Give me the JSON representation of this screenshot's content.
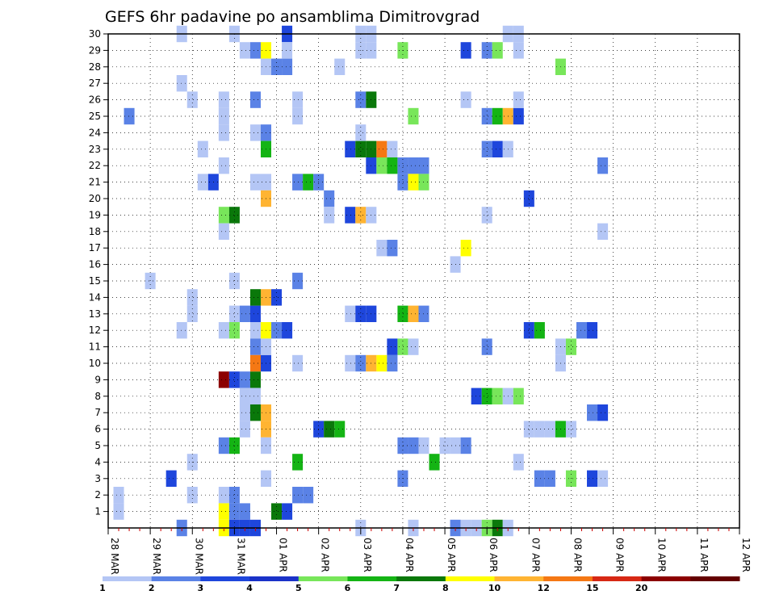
{
  "chart_data": {
    "type": "heatmap",
    "title": "GEFS 6hr padavine po ansamblima Dimitrovgrad",
    "xlabel": "",
    "ylabel": "",
    "x_labels": [
      "28 MAR",
      "29 MAR",
      "30 MAR",
      "31 MAR",
      "01 APR",
      "02 APR",
      "03 APR",
      "04 APR",
      "05 APR",
      "06 APR",
      "07 APR",
      "08 APR",
      "09 APR",
      "10 APR",
      "11 APR",
      "12 APR"
    ],
    "time_steps_per_day": 4,
    "y_members": [
      1,
      2,
      3,
      4,
      5,
      6,
      7,
      8,
      9,
      10,
      11,
      12,
      13,
      14,
      15,
      16,
      17,
      18,
      19,
      20,
      21,
      22,
      23,
      24,
      25,
      26,
      27,
      28,
      29,
      30
    ],
    "grid": true,
    "legend": {
      "placement": "bottom",
      "levels": [
        "1",
        "2",
        "3",
        "4",
        "5",
        "6",
        "7",
        "8",
        "10",
        "12",
        "15",
        "20"
      ],
      "colors": [
        "#b4c6f5",
        "#5a82e6",
        "#1e46dc",
        "#1a32c8",
        "#78e65a",
        "#14b414",
        "#0a780a",
        "#ffff00",
        "#ffb432",
        "#f57814",
        "#d72814",
        "#8c0000",
        "#640000"
      ]
    },
    "cells": [
      {
        "t": 1,
        "m": 1,
        "c": 0
      },
      {
        "t": 1,
        "m": 2,
        "c": 0
      },
      {
        "t": 2,
        "m": 25,
        "c": 1
      },
      {
        "t": 4,
        "m": 15,
        "c": 0
      },
      {
        "t": 7,
        "m": 30,
        "c": 0
      },
      {
        "t": 7,
        "m": 27,
        "c": 0
      },
      {
        "t": 7,
        "m": 12,
        "c": 0
      },
      {
        "t": 6,
        "m": 3,
        "c": 2
      },
      {
        "t": 7,
        "m": 0,
        "c": 1
      },
      {
        "t": 8,
        "m": 26,
        "c": 0
      },
      {
        "t": 8,
        "m": 14,
        "c": 0
      },
      {
        "t": 8,
        "m": 13,
        "c": 0
      },
      {
        "t": 8,
        "m": 4,
        "c": 0
      },
      {
        "t": 8,
        "m": 2,
        "c": 0
      },
      {
        "t": 9,
        "m": 23,
        "c": 0
      },
      {
        "t": 9,
        "m": 21,
        "c": 0
      },
      {
        "t": 10,
        "m": 21,
        "c": 2
      },
      {
        "t": 11,
        "m": 26,
        "c": 0
      },
      {
        "t": 11,
        "m": 25,
        "c": 0
      },
      {
        "t": 11,
        "m": 24,
        "c": 0
      },
      {
        "t": 11,
        "m": 22,
        "c": 0
      },
      {
        "t": 11,
        "m": 19,
        "c": 4
      },
      {
        "t": 12,
        "m": 19,
        "c": 6
      },
      {
        "t": 11,
        "m": 18,
        "c": 0
      },
      {
        "t": 11,
        "m": 12,
        "c": 0
      },
      {
        "t": 12,
        "m": 12,
        "c": 4
      },
      {
        "t": 11,
        "m": 9,
        "c": 11
      },
      {
        "t": 12,
        "m": 9,
        "c": 2
      },
      {
        "t": 13,
        "m": 9,
        "c": 1
      },
      {
        "t": 14,
        "m": 9,
        "c": 6
      },
      {
        "t": 11,
        "m": 5,
        "c": 1
      },
      {
        "t": 12,
        "m": 5,
        "c": 5
      },
      {
        "t": 11,
        "m": 2,
        "c": 0
      },
      {
        "t": 12,
        "m": 2,
        "c": 1
      },
      {
        "t": 11,
        "m": 1,
        "c": 7
      },
      {
        "t": 12,
        "m": 1,
        "c": 1
      },
      {
        "t": 13,
        "m": 1,
        "c": 1
      },
      {
        "t": 11,
        "m": 0,
        "c": 7
      },
      {
        "t": 12,
        "m": 0,
        "c": 2
      },
      {
        "t": 13,
        "m": 0,
        "c": 2
      },
      {
        "t": 14,
        "m": 0,
        "c": 2
      },
      {
        "t": 12,
        "m": 30,
        "c": 0
      },
      {
        "t": 12,
        "m": 15,
        "c": 0
      },
      {
        "t": 12,
        "m": 13,
        "c": 0
      },
      {
        "t": 13,
        "m": 13,
        "c": 1
      },
      {
        "t": 14,
        "m": 13,
        "c": 2
      },
      {
        "t": 13,
        "m": 29,
        "c": 0
      },
      {
        "t": 14,
        "m": 29,
        "c": 1
      },
      {
        "t": 15,
        "m": 29,
        "c": 7
      },
      {
        "t": 13,
        "m": 8,
        "c": 0
      },
      {
        "t": 14,
        "m": 8,
        "c": 0
      },
      {
        "t": 13,
        "m": 7,
        "c": 0
      },
      {
        "t": 14,
        "m": 7,
        "c": 6
      },
      {
        "t": 15,
        "m": 7,
        "c": 8
      },
      {
        "t": 13,
        "m": 6,
        "c": 0
      },
      {
        "t": 15,
        "m": 6,
        "c": 8
      },
      {
        "t": 14,
        "m": 26,
        "c": 1
      },
      {
        "t": 14,
        "m": 24,
        "c": 0
      },
      {
        "t": 15,
        "m": 24,
        "c": 1
      },
      {
        "t": 14,
        "m": 21,
        "c": 0
      },
      {
        "t": 15,
        "m": 21,
        "c": 0
      },
      {
        "t": 14,
        "m": 14,
        "c": 6
      },
      {
        "t": 15,
        "m": 14,
        "c": 8
      },
      {
        "t": 16,
        "m": 14,
        "c": 2
      },
      {
        "t": 14,
        "m": 12,
        "c": 0
      },
      {
        "t": 15,
        "m": 12,
        "c": 7
      },
      {
        "t": 16,
        "m": 12,
        "c": 1
      },
      {
        "t": 17,
        "m": 12,
        "c": 2
      },
      {
        "t": 14,
        "m": 11,
        "c": 1
      },
      {
        "t": 14,
        "m": 10,
        "c": 9
      },
      {
        "t": 15,
        "m": 10,
        "c": 2
      },
      {
        "t": 15,
        "m": 28,
        "c": 0
      },
      {
        "t": 15,
        "m": 23,
        "c": 5
      },
      {
        "t": 15,
        "m": 20,
        "c": 8
      },
      {
        "t": 15,
        "m": 11,
        "c": 0
      },
      {
        "t": 15,
        "m": 5,
        "c": 0
      },
      {
        "t": 15,
        "m": 3,
        "c": 0
      },
      {
        "t": 16,
        "m": 1,
        "c": 6
      },
      {
        "t": 17,
        "m": 1,
        "c": 2
      },
      {
        "t": 16,
        "m": 28,
        "c": 1
      },
      {
        "t": 17,
        "m": 28,
        "c": 1
      },
      {
        "t": 17,
        "m": 30,
        "c": 2
      },
      {
        "t": 17,
        "m": 29,
        "c": 0
      },
      {
        "t": 18,
        "m": 26,
        "c": 0
      },
      {
        "t": 18,
        "m": 25,
        "c": 0
      },
      {
        "t": 18,
        "m": 21,
        "c": 0
      },
      {
        "t": 18,
        "m": 21,
        "c": 1
      },
      {
        "t": 19,
        "m": 21,
        "c": 5
      },
      {
        "t": 20,
        "m": 21,
        "c": 1
      },
      {
        "t": 18,
        "m": 15,
        "c": 1
      },
      {
        "t": 18,
        "m": 10,
        "c": 0
      },
      {
        "t": 18,
        "m": 4,
        "c": 5
      },
      {
        "t": 18,
        "m": 2,
        "c": 1
      },
      {
        "t": 19,
        "m": 2,
        "c": 1
      },
      {
        "t": 20,
        "m": 6,
        "c": 2
      },
      {
        "t": 21,
        "m": 6,
        "c": 6
      },
      {
        "t": 22,
        "m": 6,
        "c": 5
      },
      {
        "t": 21,
        "m": 20,
        "c": 1
      },
      {
        "t": 21,
        "m": 19,
        "c": 0
      },
      {
        "t": 22,
        "m": 28,
        "c": 0
      },
      {
        "t": 23,
        "m": 23,
        "c": 2
      },
      {
        "t": 24,
        "m": 23,
        "c": 6
      },
      {
        "t": 25,
        "m": 23,
        "c": 6
      },
      {
        "t": 26,
        "m": 23,
        "c": 9
      },
      {
        "t": 27,
        "m": 23,
        "c": 0
      },
      {
        "t": 23,
        "m": 19,
        "c": 2
      },
      {
        "t": 24,
        "m": 19,
        "c": 8
      },
      {
        "t": 25,
        "m": 19,
        "c": 0
      },
      {
        "t": 23,
        "m": 13,
        "c": 0
      },
      {
        "t": 24,
        "m": 13,
        "c": 2
      },
      {
        "t": 25,
        "m": 13,
        "c": 2
      },
      {
        "t": 23,
        "m": 10,
        "c": 0
      },
      {
        "t": 24,
        "m": 10,
        "c": 1
      },
      {
        "t": 25,
        "m": 10,
        "c": 8
      },
      {
        "t": 26,
        "m": 10,
        "c": 7
      },
      {
        "t": 27,
        "m": 10,
        "c": 1
      },
      {
        "t": 24,
        "m": 30,
        "c": 0
      },
      {
        "t": 25,
        "m": 30,
        "c": 0
      },
      {
        "t": 24,
        "m": 29,
        "c": 0
      },
      {
        "t": 25,
        "m": 29,
        "c": 0
      },
      {
        "t": 24,
        "m": 26,
        "c": 1
      },
      {
        "t": 25,
        "m": 26,
        "c": 6
      },
      {
        "t": 24,
        "m": 24,
        "c": 0
      },
      {
        "t": 24,
        "m": 0,
        "c": 0
      },
      {
        "t": 25,
        "m": 22,
        "c": 2
      },
      {
        "t": 26,
        "m": 22,
        "c": 4
      },
      {
        "t": 27,
        "m": 22,
        "c": 5
      },
      {
        "t": 28,
        "m": 22,
        "c": 1
      },
      {
        "t": 29,
        "m": 22,
        "c": 1
      },
      {
        "t": 30,
        "m": 22,
        "c": 1
      },
      {
        "t": 26,
        "m": 17,
        "c": 0
      },
      {
        "t": 27,
        "m": 17,
        "c": 1
      },
      {
        "t": 27,
        "m": 11,
        "c": 2
      },
      {
        "t": 28,
        "m": 11,
        "c": 4
      },
      {
        "t": 29,
        "m": 11,
        "c": 0
      },
      {
        "t": 28,
        "m": 21,
        "c": 1
      },
      {
        "t": 29,
        "m": 21,
        "c": 7
      },
      {
        "t": 30,
        "m": 21,
        "c": 4
      },
      {
        "t": 28,
        "m": 13,
        "c": 5
      },
      {
        "t": 29,
        "m": 13,
        "c": 8
      },
      {
        "t": 30,
        "m": 13,
        "c": 1
      },
      {
        "t": 28,
        "m": 5,
        "c": 1
      },
      {
        "t": 29,
        "m": 5,
        "c": 1
      },
      {
        "t": 30,
        "m": 5,
        "c": 0
      },
      {
        "t": 28,
        "m": 3,
        "c": 1
      },
      {
        "t": 28,
        "m": 29,
        "c": 4
      },
      {
        "t": 29,
        "m": 25,
        "c": 4
      },
      {
        "t": 29,
        "m": 0,
        "c": 0
      },
      {
        "t": 31,
        "m": 4,
        "c": 5
      },
      {
        "t": 32,
        "m": 5,
        "c": 0
      },
      {
        "t": 33,
        "m": 5,
        "c": 0
      },
      {
        "t": 33,
        "m": 16,
        "c": 0
      },
      {
        "t": 34,
        "m": 29,
        "c": 2
      },
      {
        "t": 34,
        "m": 17,
        "c": 7
      },
      {
        "t": 34,
        "m": 5,
        "c": 1
      },
      {
        "t": 33,
        "m": 0,
        "c": 1
      },
      {
        "t": 34,
        "m": 0,
        "c": 0
      },
      {
        "t": 35,
        "m": 0,
        "c": 0
      },
      {
        "t": 36,
        "m": 0,
        "c": 4
      },
      {
        "t": 37,
        "m": 0,
        "c": 6
      },
      {
        "t": 38,
        "m": 0,
        "c": 0
      },
      {
        "t": 34,
        "m": 26,
        "c": 0
      },
      {
        "t": 35,
        "m": 8,
        "c": 2
      },
      {
        "t": 36,
        "m": 8,
        "c": 5
      },
      {
        "t": 37,
        "m": 8,
        "c": 4
      },
      {
        "t": 38,
        "m": 8,
        "c": 0
      },
      {
        "t": 39,
        "m": 8,
        "c": 4
      },
      {
        "t": 36,
        "m": 29,
        "c": 1
      },
      {
        "t": 37,
        "m": 29,
        "c": 4
      },
      {
        "t": 36,
        "m": 25,
        "c": 1
      },
      {
        "t": 37,
        "m": 25,
        "c": 5
      },
      {
        "t": 38,
        "m": 25,
        "c": 8
      },
      {
        "t": 39,
        "m": 25,
        "c": 2
      },
      {
        "t": 36,
        "m": 23,
        "c": 1
      },
      {
        "t": 37,
        "m": 23,
        "c": 2
      },
      {
        "t": 38,
        "m": 23,
        "c": 0
      },
      {
        "t": 36,
        "m": 19,
        "c": 0
      },
      {
        "t": 36,
        "m": 11,
        "c": 1
      },
      {
        "t": 38,
        "m": 30,
        "c": 0
      },
      {
        "t": 39,
        "m": 30,
        "c": 0
      },
      {
        "t": 39,
        "m": 29,
        "c": 0
      },
      {
        "t": 39,
        "m": 26,
        "c": 0
      },
      {
        "t": 39,
        "m": 4,
        "c": 0
      },
      {
        "t": 40,
        "m": 20,
        "c": 2
      },
      {
        "t": 40,
        "m": 12,
        "c": 2
      },
      {
        "t": 41,
        "m": 12,
        "c": 5
      },
      {
        "t": 40,
        "m": 6,
        "c": 0
      },
      {
        "t": 41,
        "m": 6,
        "c": 0
      },
      {
        "t": 42,
        "m": 6,
        "c": 0
      },
      {
        "t": 43,
        "m": 6,
        "c": 5
      },
      {
        "t": 44,
        "m": 6,
        "c": 0
      },
      {
        "t": 41,
        "m": 3,
        "c": 1
      },
      {
        "t": 42,
        "m": 3,
        "c": 1
      },
      {
        "t": 43,
        "m": 28,
        "c": 4
      },
      {
        "t": 43,
        "m": 11,
        "c": 0
      },
      {
        "t": 44,
        "m": 11,
        "c": 4
      },
      {
        "t": 43,
        "m": 10,
        "c": 0
      },
      {
        "t": 44,
        "m": 3,
        "c": 4
      },
      {
        "t": 45,
        "m": 12,
        "c": 1
      },
      {
        "t": 46,
        "m": 12,
        "c": 2
      },
      {
        "t": 46,
        "m": 7,
        "c": 1
      },
      {
        "t": 47,
        "m": 7,
        "c": 2
      },
      {
        "t": 46,
        "m": 3,
        "c": 2
      },
      {
        "t": 47,
        "m": 3,
        "c": 0
      },
      {
        "t": 47,
        "m": 22,
        "c": 1
      },
      {
        "t": 47,
        "m": 18,
        "c": 0
      }
    ]
  }
}
